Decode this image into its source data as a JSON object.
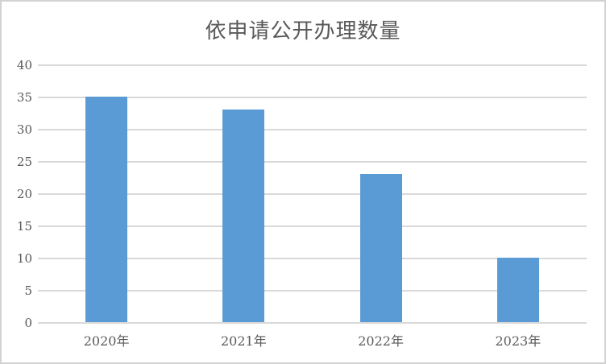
{
  "chart_data": {
    "type": "bar",
    "title": "依申请公开办理数量",
    "categories": [
      "2020年",
      "2021年",
      "2022年",
      "2023年"
    ],
    "values": [
      35,
      33,
      23,
      10
    ],
    "xlabel": "",
    "ylabel": "",
    "ylim": [
      0,
      40
    ],
    "ytick_step": 5,
    "yticks": [
      40,
      35,
      30,
      25,
      20,
      15,
      10,
      5,
      0
    ],
    "grid": true,
    "legend": false,
    "colors": {
      "bar": "#5b9bd5",
      "gridline": "#d9d9d9",
      "text": "#595959",
      "frame_border": "#d2d2d2",
      "background": "#ffffff"
    }
  }
}
